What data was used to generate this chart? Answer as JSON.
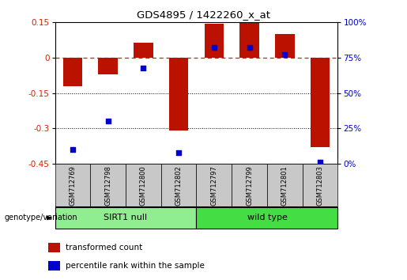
{
  "title": "GDS4895 / 1422260_x_at",
  "samples": [
    "GSM712769",
    "GSM712798",
    "GSM712800",
    "GSM712802",
    "GSM712797",
    "GSM712799",
    "GSM712801",
    "GSM712803"
  ],
  "transformed_count": [
    -0.12,
    -0.07,
    0.065,
    -0.31,
    0.145,
    0.148,
    0.1,
    -0.38
  ],
  "percentile_rank": [
    10,
    30,
    68,
    8,
    82,
    82,
    77,
    1
  ],
  "groups": [
    {
      "label": "SIRT1 null",
      "start": 0,
      "end": 4,
      "color": "#90EE90"
    },
    {
      "label": "wild type",
      "start": 4,
      "end": 8,
      "color": "#44DD44"
    }
  ],
  "ylim_left": [
    -0.45,
    0.15
  ],
  "ylim_right": [
    0,
    100
  ],
  "yticks_left": [
    0.15,
    0.0,
    -0.15,
    -0.3,
    -0.45
  ],
  "yticks_right": [
    100,
    75,
    50,
    25,
    0
  ],
  "bar_color": "#BB1100",
  "dot_color": "#0000CC",
  "zero_line_color": "#CC2200",
  "bg_color": "#FFFFFF",
  "tick_label_color_left": "#CC2200",
  "tick_label_color_right": "#0000CC",
  "bar_width": 0.55,
  "legend_items": [
    {
      "color": "#BB1100",
      "label": "transformed count"
    },
    {
      "color": "#0000CC",
      "label": "percentile rank within the sample"
    }
  ],
  "genotype_label": "genotype/variation"
}
